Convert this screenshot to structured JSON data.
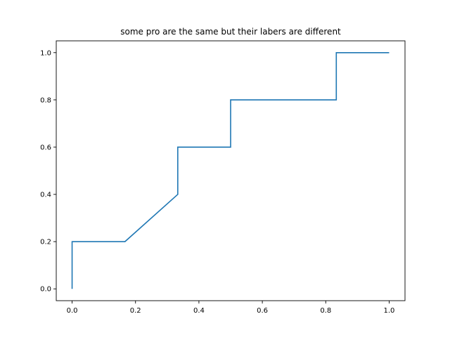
{
  "chart_data": {
    "type": "line",
    "title": "some pro are the same but their labers are different",
    "xlabel": "",
    "ylabel": "",
    "xlim": [
      -0.05,
      1.05
    ],
    "ylim": [
      -0.05,
      1.05
    ],
    "xticks": [
      0.0,
      0.2,
      0.4,
      0.6,
      0.8,
      1.0
    ],
    "xtick_labels": [
      "0.0",
      "0.2",
      "0.4",
      "0.6",
      "0.8",
      "1.0"
    ],
    "yticks": [
      0.0,
      0.2,
      0.4,
      0.6,
      0.8,
      1.0
    ],
    "ytick_labels": [
      "0.0",
      "0.2",
      "0.4",
      "0.6",
      "0.8",
      "1.0"
    ],
    "grid": false,
    "legend": null,
    "series": [
      {
        "color": "#1f77b4",
        "x": [
          0.0,
          0.0,
          0.1667,
          0.3333,
          0.3333,
          0.5,
          0.5,
          0.8333,
          0.8333,
          1.0
        ],
        "y": [
          0.0,
          0.2,
          0.2,
          0.4,
          0.6,
          0.6,
          0.8,
          0.8,
          1.0,
          1.0
        ]
      }
    ]
  }
}
